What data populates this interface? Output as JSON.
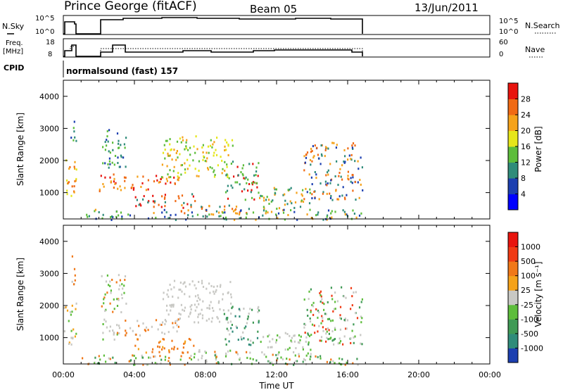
{
  "header": {
    "station": "Prince George (fitACF)",
    "beam": "Beam 05",
    "date": "13/Jun/2011"
  },
  "small_panels": {
    "nsky_label": "N.Sky",
    "nsky_ticks": [
      "10^5",
      "10^0"
    ],
    "nsearch_label": "N.Search",
    "nsearch_ticks": [
      "10^5",
      "10^0"
    ],
    "freq_label": "Freq.",
    "freq_unit": "[MHz]",
    "freq_ticks": [
      "18",
      "8"
    ],
    "nave_label": "Nave",
    "nave_ticks": [
      "60",
      "0"
    ],
    "cpid_label": "CPID",
    "cpid_value": "normalsound (fast) 157"
  },
  "chart_data": [
    {
      "type": "heatmap",
      "name": "power",
      "ylabel": "Slant Range [km]",
      "yticks": [
        "4000",
        "3000",
        "2000",
        "1000"
      ],
      "colorbar_label": "Power [dB]",
      "colorbar_ticks": [
        "28",
        "24",
        "20",
        "16",
        "12",
        "8",
        "4"
      ],
      "colors": [
        "#0000ff",
        "#1c3fb0",
        "#2f8c7a",
        "#5dbd3b",
        "#e6e61a",
        "#f5a21a",
        "#f06a14",
        "#e8140e"
      ],
      "ylim": [
        180,
        4500
      ],
      "xlim_hours": [
        0,
        24
      ]
    },
    {
      "type": "heatmap",
      "name": "velocity",
      "ylabel": "Slant Range [km]",
      "yticks": [
        "4000",
        "3000",
        "2000",
        "1000"
      ],
      "colorbar_label": "Velocity [m s⁻¹]",
      "colorbar_ticks": [
        "1000",
        "500",
        "100",
        "25",
        "-25",
        "-100",
        "-500",
        "-1000"
      ],
      "colors": [
        "#1c3fb0",
        "#2f8c7a",
        "#3f9a55",
        "#5dbd3b",
        "#c8c8c4",
        "#f5a21a",
        "#f07818",
        "#f03a14",
        "#e8140e"
      ],
      "ylim": [
        180,
        4500
      ],
      "xlim_hours": [
        0,
        24
      ]
    }
  ],
  "xaxis": {
    "ticks": [
      "00:00",
      "04:00",
      "08:00",
      "12:00",
      "16:00",
      "20:00",
      "00:00"
    ],
    "label": "Time UT"
  }
}
